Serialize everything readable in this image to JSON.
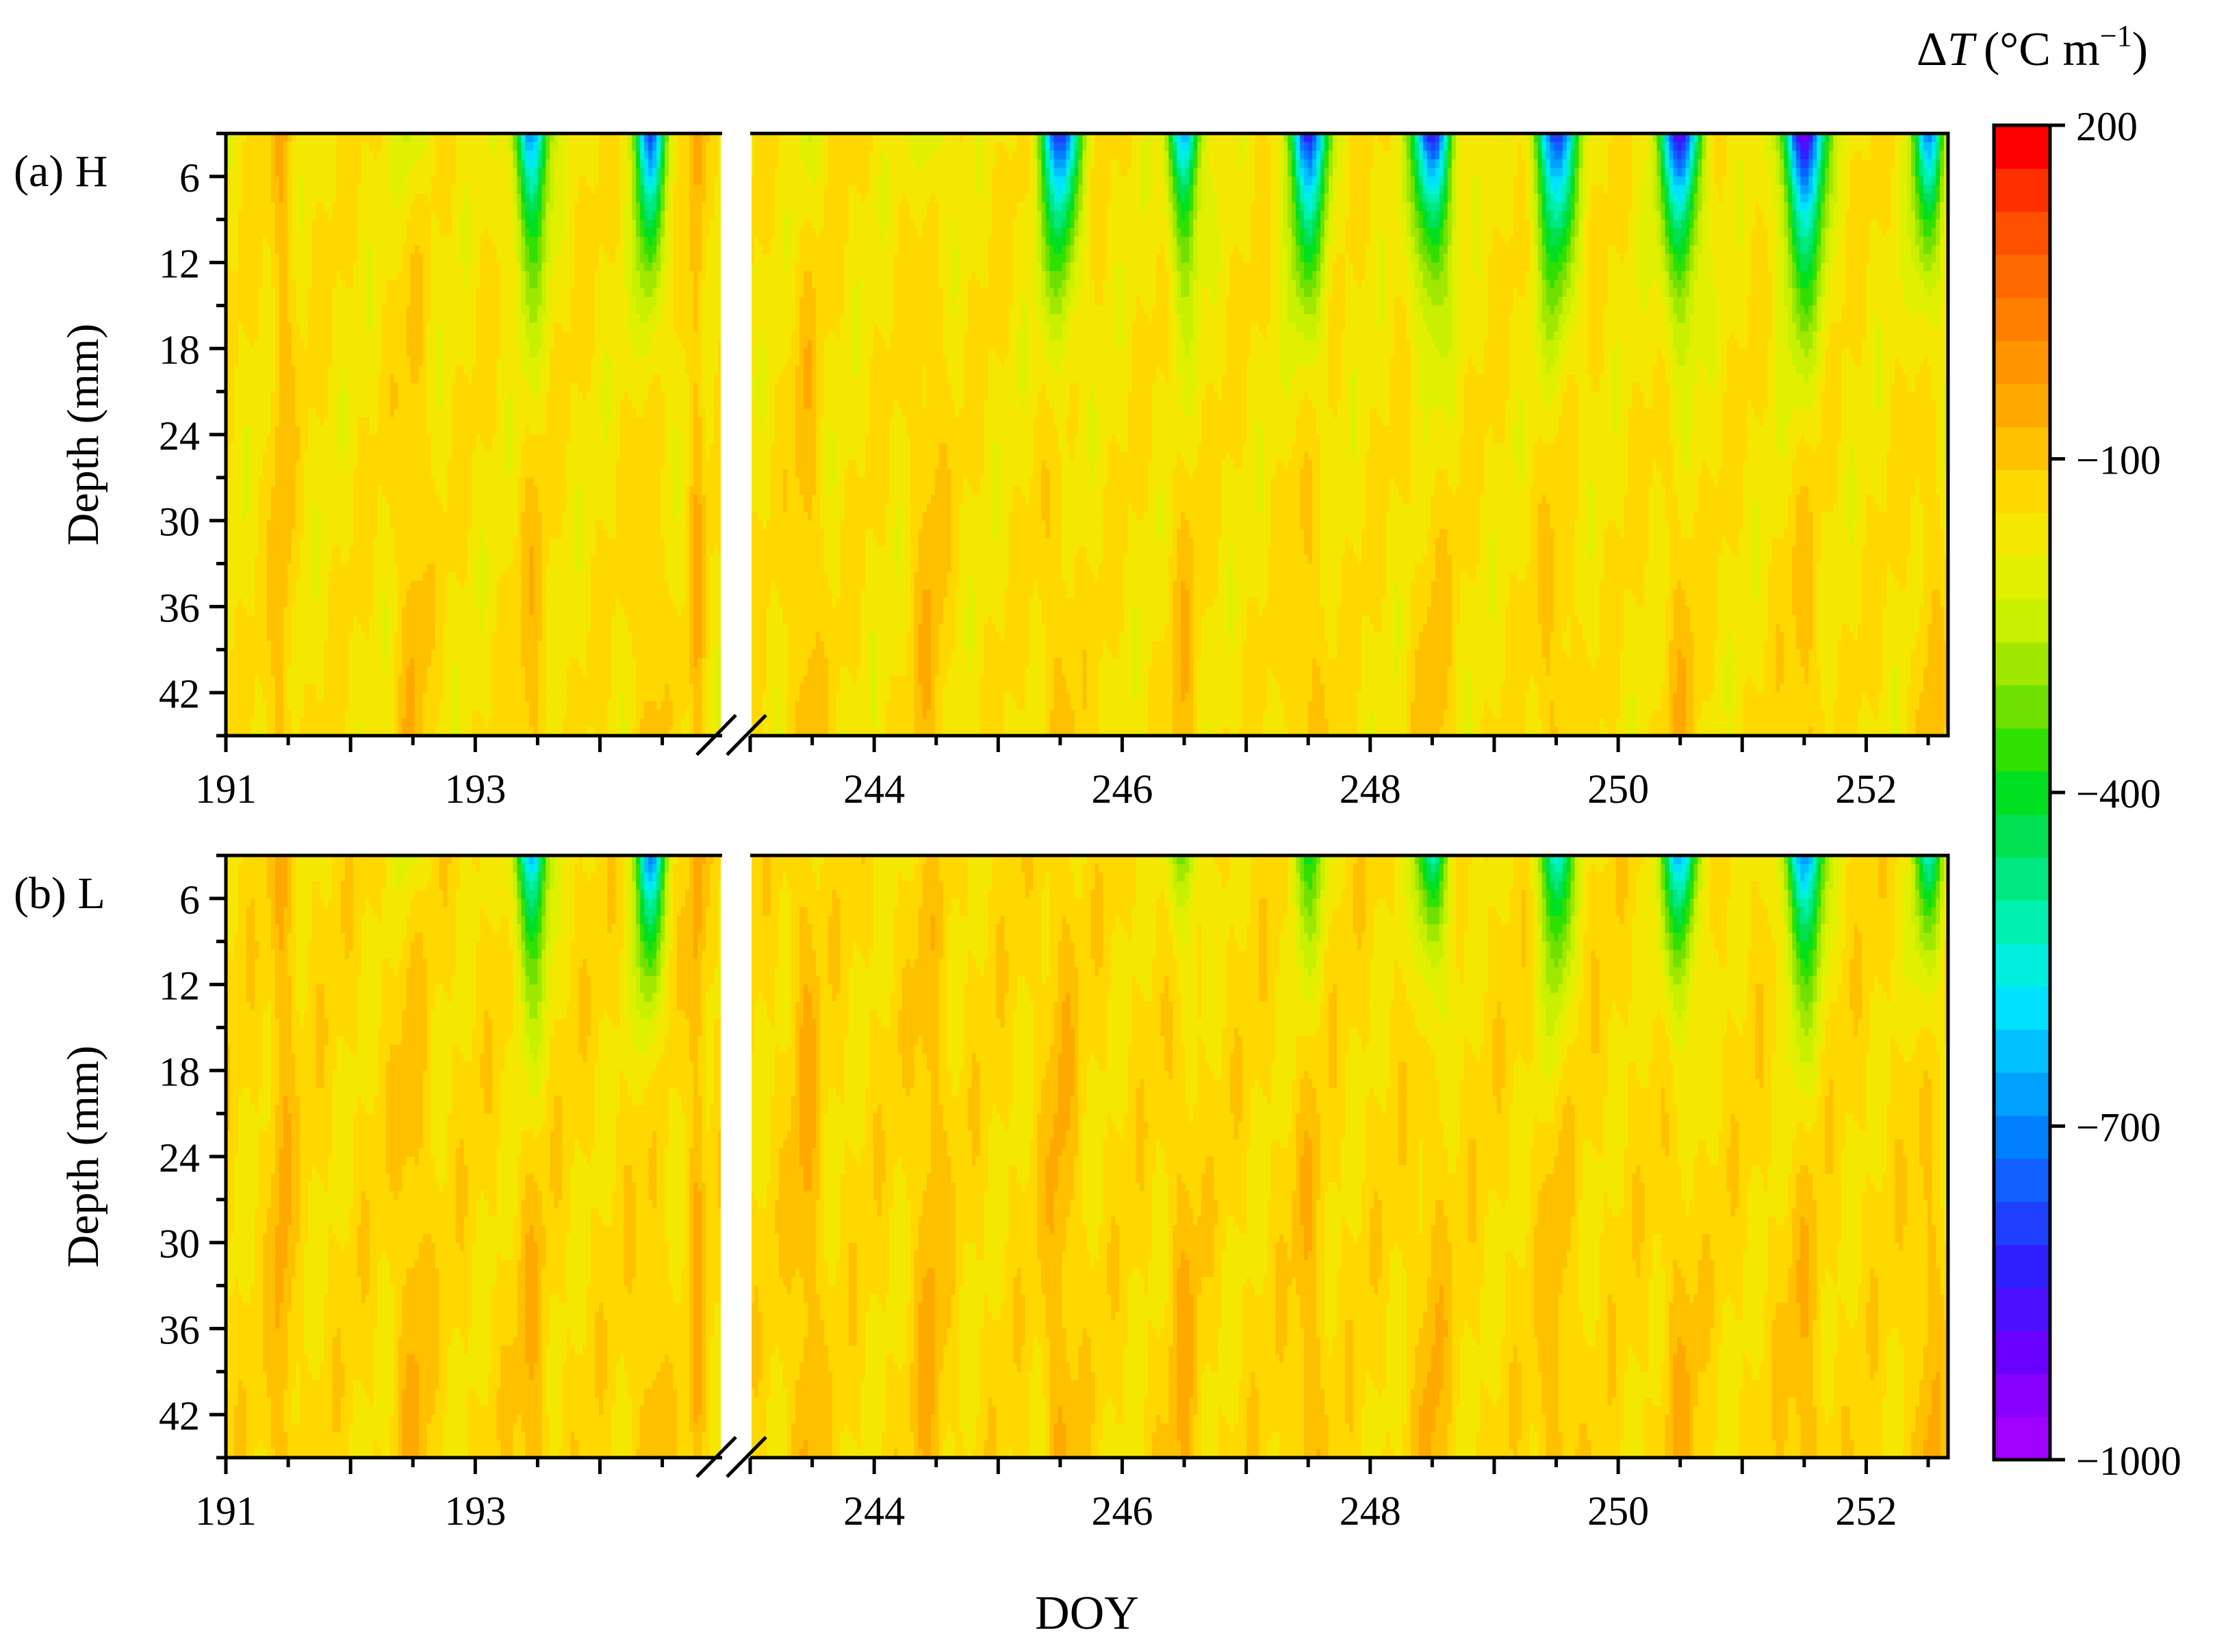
{
  "chart_data": {
    "type": "heatmap",
    "colorbar": {
      "title_prefix": "Δ",
      "title_var": "T",
      "title_unit": "(°C m",
      "title_exp": "−1",
      "title_close": ")",
      "min": -1000,
      "max": 200,
      "step": 40,
      "tick_values": [
        200,
        -100,
        -400,
        -700,
        -1000
      ],
      "tick_labels": [
        "200",
        "−100",
        "−400",
        "−700",
        "−1000"
      ],
      "colors": [
        "#a000ff",
        "#8a00ff",
        "#6a00ff",
        "#4a10ff",
        "#3020ff",
        "#2040ff",
        "#1060ff",
        "#0080ff",
        "#00a0ff",
        "#00c0ff",
        "#00e0ff",
        "#00f0e0",
        "#00f0b0",
        "#00e880",
        "#00e050",
        "#00e020",
        "#30e000",
        "#70e000",
        "#a0e800",
        "#c8f000",
        "#e0f000",
        "#f5e800",
        "#ffd800",
        "#ffc000",
        "#ffa800",
        "#ff9400",
        "#ff8000",
        "#ff6a00",
        "#ff5000",
        "#ff3000",
        "#ff0000"
      ]
    },
    "x_segments": [
      {
        "start": 191,
        "end": 194.98
      },
      {
        "start": 243,
        "end": 252.66
      }
    ],
    "x_ticks": [
      191,
      193,
      244,
      246,
      248,
      250,
      252
    ],
    "xlabel": "DOY",
    "ylabel": "Depth (mm)",
    "ylim": [
      3,
      45
    ],
    "y_ticks": [
      6,
      12,
      18,
      24,
      30,
      36,
      42
    ],
    "panels": [
      {
        "id": "a",
        "label": "(a) H",
        "baseline": -155,
        "cold_bands": [
          {
            "doy": 191.45,
            "min_value": -80,
            "halfwidth": 0.09
          },
          {
            "doy": 192.5,
            "min_value": -230,
            "halfwidth": 0.12
          },
          {
            "doy": 193.45,
            "min_value": -720,
            "halfwidth": 0.13
          },
          {
            "doy": 194.4,
            "min_value": -780,
            "halfwidth": 0.11
          },
          {
            "doy": 194.78,
            "min_value": -70,
            "halfwidth": 0.06
          },
          {
            "doy": 243.45,
            "min_value": -200,
            "halfwidth": 0.12
          },
          {
            "doy": 244.45,
            "min_value": -250,
            "halfwidth": 0.13
          },
          {
            "doy": 245.5,
            "min_value": -820,
            "halfwidth": 0.15
          },
          {
            "doy": 246.5,
            "min_value": -680,
            "halfwidth": 0.12
          },
          {
            "doy": 247.5,
            "min_value": -820,
            "halfwidth": 0.15
          },
          {
            "doy": 248.5,
            "min_value": -860,
            "halfwidth": 0.15
          },
          {
            "doy": 249.5,
            "min_value": -850,
            "halfwidth": 0.15
          },
          {
            "doy": 250.5,
            "min_value": -900,
            "halfwidth": 0.15
          },
          {
            "doy": 251.5,
            "min_value": -960,
            "halfwidth": 0.16
          },
          {
            "doy": 252.5,
            "min_value": -680,
            "halfwidth": 0.12
          }
        ]
      },
      {
        "id": "b",
        "label": "(b) L",
        "baseline": -140,
        "cold_bands": [
          {
            "doy": 191.45,
            "min_value": -70,
            "halfwidth": 0.09
          },
          {
            "doy": 192.5,
            "min_value": -200,
            "halfwidth": 0.12
          },
          {
            "doy": 193.45,
            "min_value": -650,
            "halfwidth": 0.13
          },
          {
            "doy": 194.4,
            "min_value": -700,
            "halfwidth": 0.11
          },
          {
            "doy": 194.78,
            "min_value": -60,
            "halfwidth": 0.06
          },
          {
            "doy": 243.45,
            "min_value": -110,
            "halfwidth": 0.12
          },
          {
            "doy": 244.45,
            "min_value": -130,
            "halfwidth": 0.12
          },
          {
            "doy": 245.5,
            "min_value": -120,
            "halfwidth": 0.13
          },
          {
            "doy": 246.5,
            "min_value": -330,
            "halfwidth": 0.12
          },
          {
            "doy": 247.5,
            "min_value": -380,
            "halfwidth": 0.13
          },
          {
            "doy": 248.5,
            "min_value": -520,
            "halfwidth": 0.13
          },
          {
            "doy": 249.5,
            "min_value": -580,
            "halfwidth": 0.13
          },
          {
            "doy": 250.5,
            "min_value": -650,
            "halfwidth": 0.14
          },
          {
            "doy": 251.5,
            "min_value": -720,
            "halfwidth": 0.15
          },
          {
            "doy": 252.5,
            "min_value": -500,
            "halfwidth": 0.12
          }
        ]
      }
    ]
  }
}
